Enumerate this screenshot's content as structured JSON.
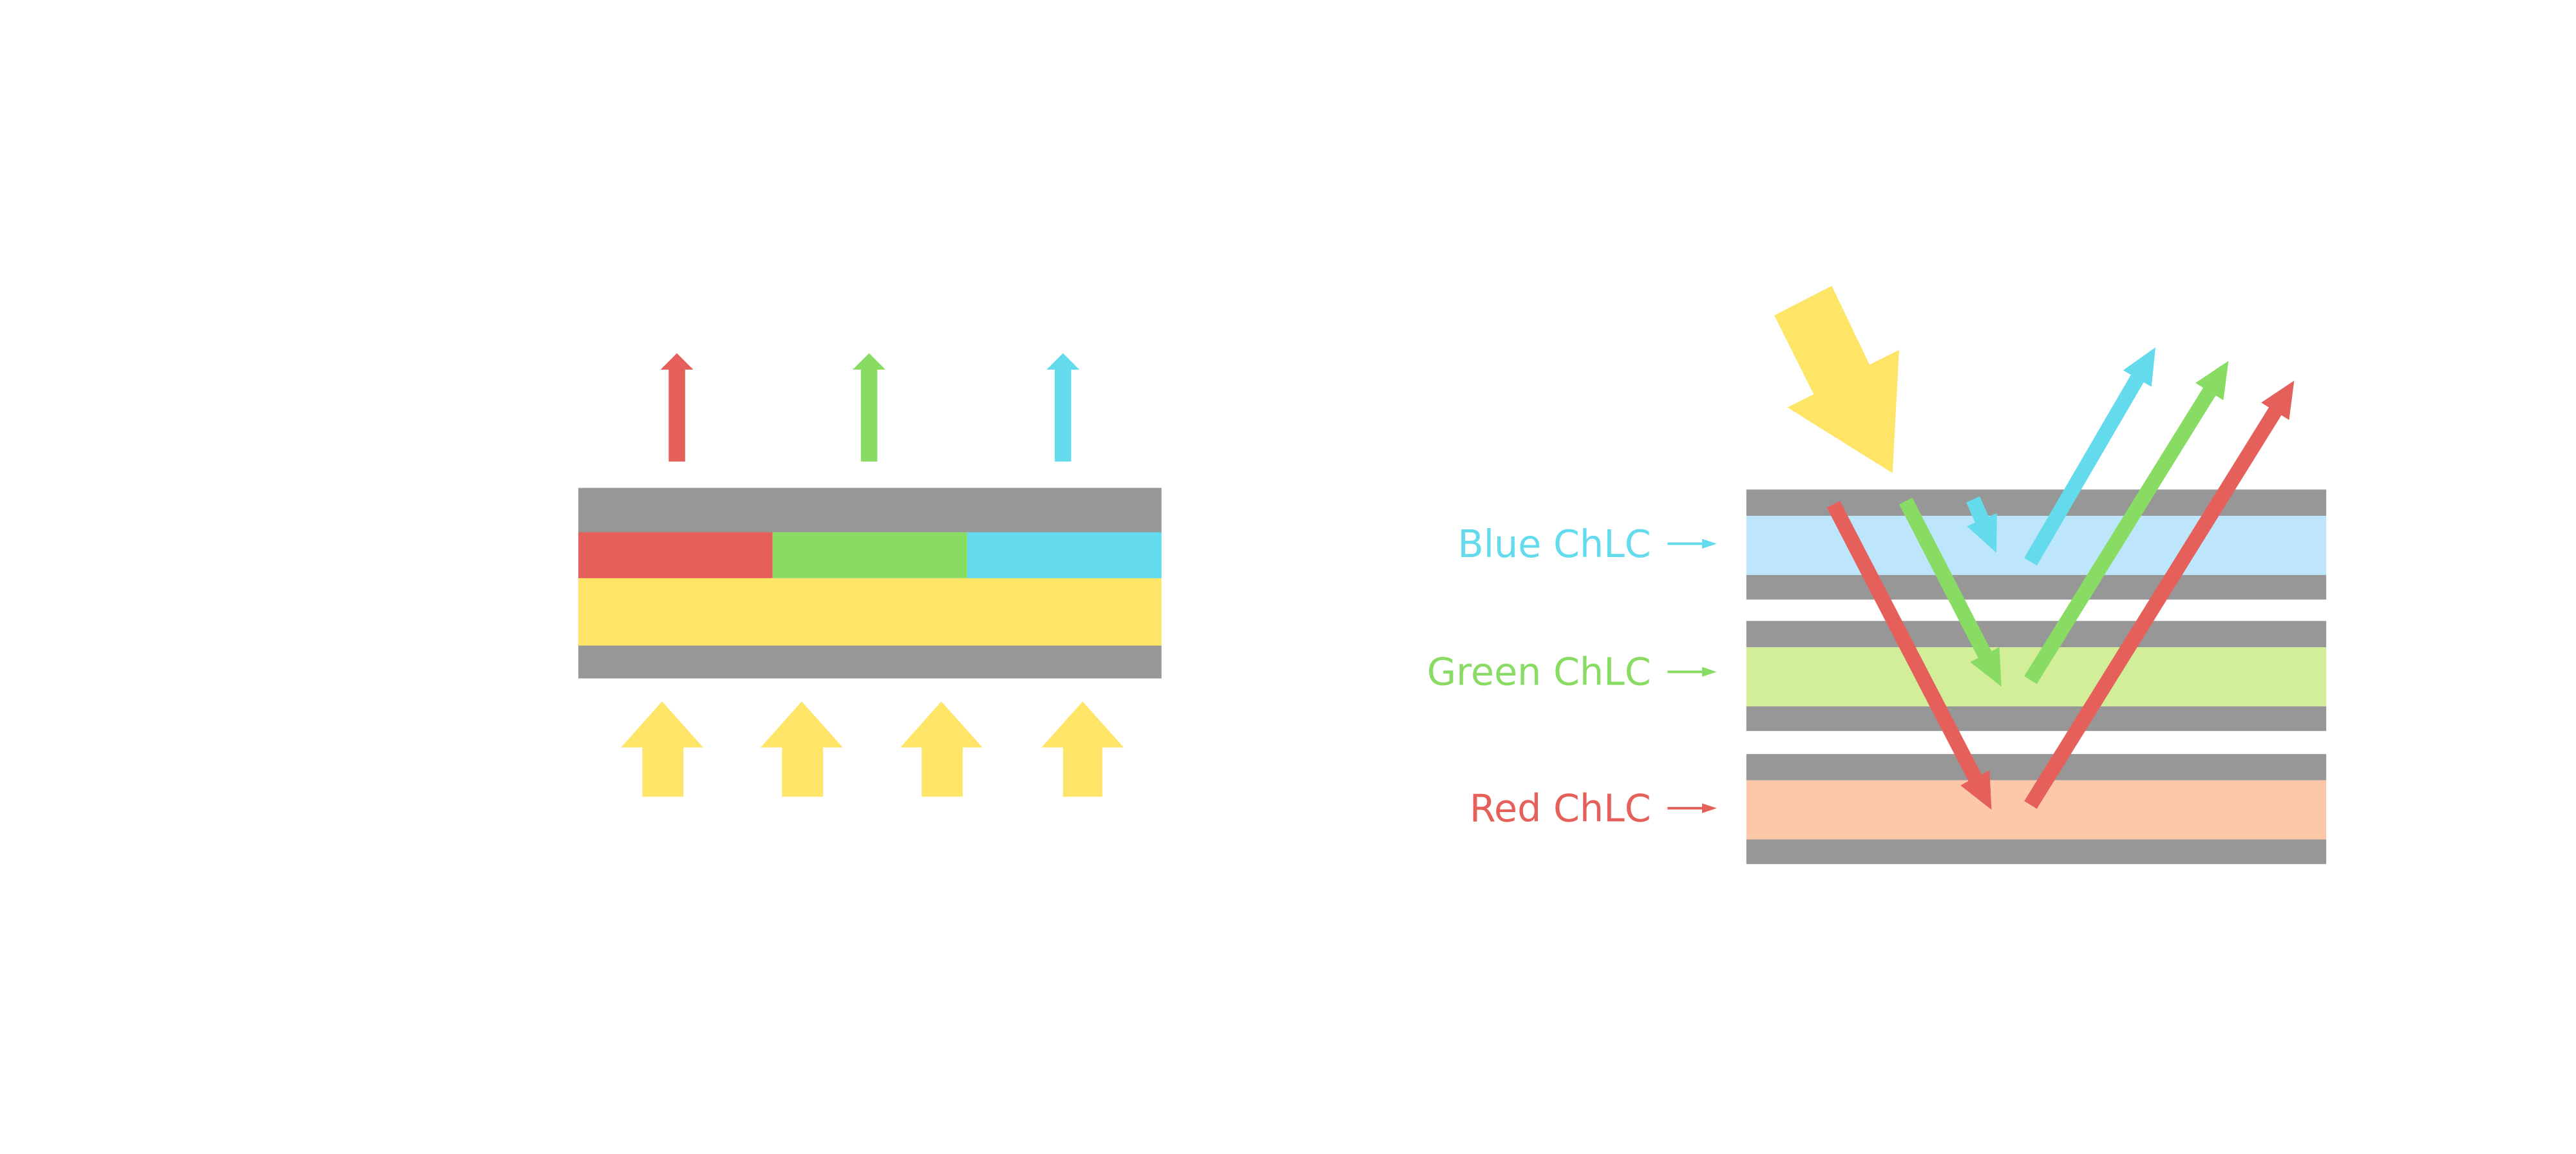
{
  "colors": {
    "gray": "#979797",
    "red": "#e6605b",
    "green": "#89dc63",
    "blue": "#63dbed",
    "yellow": "#fee568",
    "blue_layer": "#bde6fc",
    "green_layer": "#d3ee99",
    "red_layer": "#fdc8a9"
  },
  "right_diagram": {
    "labels": [
      {
        "text": "Blue ChLC",
        "color": "#63dbed"
      },
      {
        "text": "Green ChLC",
        "color": "#89dc63"
      },
      {
        "text": "Red ChLC",
        "color": "#e6605b"
      }
    ]
  }
}
